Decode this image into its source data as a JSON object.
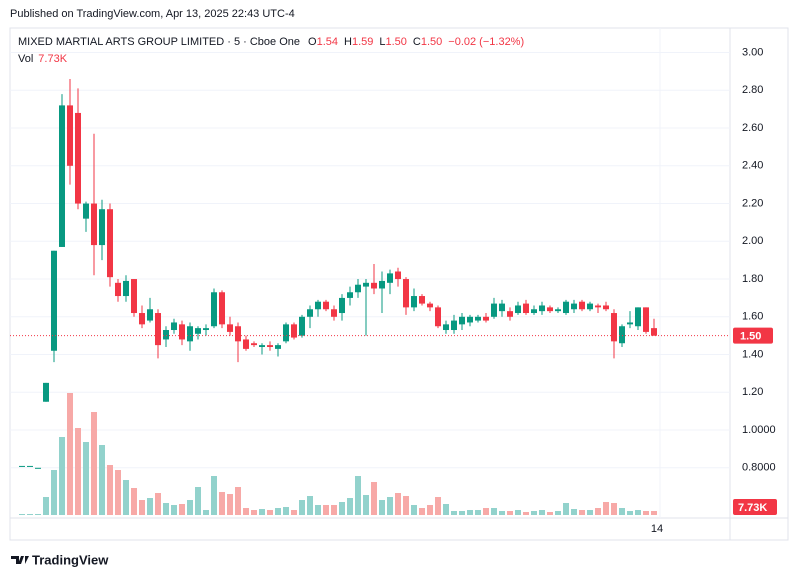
{
  "published": "Published on TradingView.com, Apr 13, 2025 22:43 UTC-4",
  "brand": "TradingView",
  "chart_data": {
    "type": "candlestick",
    "title": "MIXED MARTIAL ARTS GROUP LIMITED · 5 · Cboe One",
    "legend": [
      {
        "key": "O",
        "text": "1.54"
      },
      {
        "key": "H",
        "text": "1.59"
      },
      {
        "key": "L",
        "text": "1.50"
      },
      {
        "key": "C",
        "text": "1.50"
      }
    ],
    "change": "−0.02 (−1.32%)",
    "volume_title": "Vol",
    "last_volume_label": "7.73K",
    "last_price_label": "1.50",
    "up_color": "#089981",
    "down_color": "#f23645",
    "up_volume_color": "#92d2cc",
    "down_volume_color": "#f7a9a7",
    "categories": [
      null,
      null,
      null,
      null,
      null,
      null,
      null,
      null,
      null,
      null,
      null,
      null,
      null,
      null,
      null,
      null,
      null,
      null,
      null,
      null,
      null,
      null,
      null,
      null,
      null,
      null,
      null,
      null,
      null,
      null,
      null,
      null,
      null,
      null,
      null,
      null,
      null,
      null,
      null,
      null,
      null,
      null,
      null,
      null,
      null,
      null,
      null,
      null,
      null,
      null,
      null,
      null,
      null,
      null,
      null,
      null,
      null,
      null,
      null,
      null,
      null,
      null,
      null,
      null,
      null,
      null,
      null,
      null,
      null,
      null,
      null,
      null,
      null,
      null,
      null,
      null,
      null,
      null,
      null,
      "14"
    ],
    "open": [
      0.81,
      0.81,
      0.8,
      1.15,
      1.42,
      1.97,
      2.72,
      2.68,
      2.12,
      2.2,
      1.98,
      2.17,
      1.78,
      1.71,
      1.8,
      1.62,
      1.58,
      1.62,
      1.48,
      1.53,
      1.56,
      1.47,
      1.51,
      1.53,
      1.55,
      1.73,
      1.56,
      1.55,
      1.48,
      1.46,
      1.44,
      1.45,
      1.43,
      1.47,
      1.56,
      1.5,
      1.6,
      1.64,
      1.68,
      1.64,
      1.62,
      1.7,
      1.73,
      1.76,
      1.78,
      1.75,
      1.78,
      1.84,
      1.8,
      1.65,
      1.71,
      1.67,
      1.65,
      1.53,
      1.53,
      1.56,
      1.57,
      1.58,
      1.6,
      1.6,
      1.63,
      1.63,
      1.62,
      1.67,
      1.62,
      1.63,
      1.65,
      1.63,
      1.62,
      1.64,
      1.68,
      1.64,
      1.66,
      1.66,
      1.62,
      1.46,
      1.56,
      1.55,
      1.65,
      1.54
    ],
    "high": [
      0.81,
      0.81,
      0.8,
      1.25,
      1.95,
      2.78,
      2.86,
      2.81,
      2.21,
      2.57,
      2.22,
      2.2,
      1.8,
      1.82,
      1.8,
      1.66,
      1.7,
      1.64,
      1.55,
      1.59,
      1.58,
      1.57,
      1.55,
      1.56,
      1.75,
      1.74,
      1.6,
      1.57,
      1.5,
      1.47,
      1.46,
      1.47,
      1.46,
      1.57,
      1.57,
      1.61,
      1.66,
      1.69,
      1.69,
      1.66,
      1.72,
      1.76,
      1.8,
      1.8,
      1.88,
      1.84,
      1.85,
      1.86,
      1.81,
      1.75,
      1.72,
      1.68,
      1.66,
      1.58,
      1.61,
      1.62,
      1.61,
      1.61,
      1.62,
      1.7,
      1.69,
      1.65,
      1.68,
      1.69,
      1.66,
      1.68,
      1.66,
      1.65,
      1.69,
      1.69,
      1.69,
      1.68,
      1.67,
      1.68,
      1.64,
      1.56,
      1.63,
      1.65,
      1.65,
      1.59
    ],
    "low": [
      0.81,
      0.81,
      0.8,
      1.15,
      1.36,
      1.97,
      2.3,
      2.17,
      2.05,
      1.82,
      1.9,
      1.76,
      1.68,
      1.68,
      1.6,
      1.54,
      1.57,
      1.38,
      1.44,
      1.51,
      1.45,
      1.42,
      1.48,
      1.5,
      1.54,
      1.54,
      1.5,
      1.36,
      1.42,
      1.44,
      1.4,
      1.42,
      1.39,
      1.46,
      1.48,
      1.49,
      1.54,
      1.6,
      1.63,
      1.58,
      1.58,
      1.66,
      1.7,
      1.5,
      1.72,
      1.62,
      1.72,
      1.76,
      1.61,
      1.63,
      1.66,
      1.63,
      1.54,
      1.51,
      1.51,
      1.53,
      1.55,
      1.57,
      1.57,
      1.59,
      1.6,
      1.58,
      1.61,
      1.61,
      1.61,
      1.61,
      1.62,
      1.62,
      1.61,
      1.62,
      1.63,
      1.63,
      1.62,
      1.63,
      1.38,
      1.44,
      1.54,
      1.53,
      1.51,
      1.5
    ],
    "close": [
      0.81,
      0.81,
      0.8,
      1.25,
      1.95,
      2.72,
      2.4,
      2.2,
      2.2,
      1.98,
      2.17,
      1.81,
      1.71,
      1.79,
      1.62,
      1.56,
      1.64,
      1.45,
      1.53,
      1.57,
      1.48,
      1.55,
      1.54,
      1.54,
      1.73,
      1.56,
      1.52,
      1.47,
      1.43,
      1.45,
      1.45,
      1.44,
      1.45,
      1.56,
      1.49,
      1.6,
      1.64,
      1.68,
      1.64,
      1.6,
      1.7,
      1.73,
      1.77,
      1.78,
      1.75,
      1.79,
      1.83,
      1.8,
      1.65,
      1.71,
      1.67,
      1.65,
      1.55,
      1.56,
      1.58,
      1.6,
      1.6,
      1.6,
      1.58,
      1.67,
      1.67,
      1.6,
      1.66,
      1.62,
      1.64,
      1.66,
      1.63,
      1.64,
      1.68,
      1.67,
      1.64,
      1.67,
      1.65,
      1.64,
      1.47,
      1.55,
      1.57,
      1.65,
      1.52,
      1.5
    ],
    "volume": [
      1930,
      1930,
      1930,
      34740,
      86850,
      150540,
      235460,
      167910,
      140890,
      198790,
      135100,
      96500,
      86850,
      67550,
      52110,
      28950,
      32810,
      42460,
      23160,
      19300,
      21230,
      28950,
      54040,
      9650,
      75270,
      44390,
      40530,
      54040,
      13510,
      9650,
      11580,
      9650,
      13510,
      15440,
      9650,
      28950,
      36670,
      19300,
      19300,
      19300,
      25090,
      32810,
      75270,
      38600,
      63690,
      28950,
      34740,
      42460,
      36670,
      19300,
      13510,
      19300,
      34740,
      21230,
      7720,
      7720,
      9650,
      9650,
      13510,
      13510,
      7720,
      7720,
      9650,
      5790,
      7720,
      9650,
      5790,
      7720,
      23160,
      11580,
      9650,
      9650,
      13510,
      25090,
      23160,
      13510,
      7720,
      9650,
      7720,
      7730
    ],
    "ylim": [
      0.55,
      3.13
    ],
    "yticks": [
      {
        "value": 0.8,
        "label": "0.8000"
      },
      {
        "value": 1.0,
        "label": "1.0000"
      },
      {
        "value": 1.2,
        "label": "1.20"
      },
      {
        "value": 1.4,
        "label": "1.40"
      },
      {
        "value": 1.6,
        "label": "1.60"
      },
      {
        "value": 1.8,
        "label": "1.80"
      },
      {
        "value": 2.0,
        "label": "2.00"
      },
      {
        "value": 2.2,
        "label": "2.20"
      },
      {
        "value": 2.4,
        "label": "2.40"
      },
      {
        "value": 2.6,
        "label": "2.60"
      },
      {
        "value": 2.8,
        "label": "2.80"
      },
      {
        "value": 3.0,
        "label": "3.00"
      }
    ],
    "grid": true
  }
}
